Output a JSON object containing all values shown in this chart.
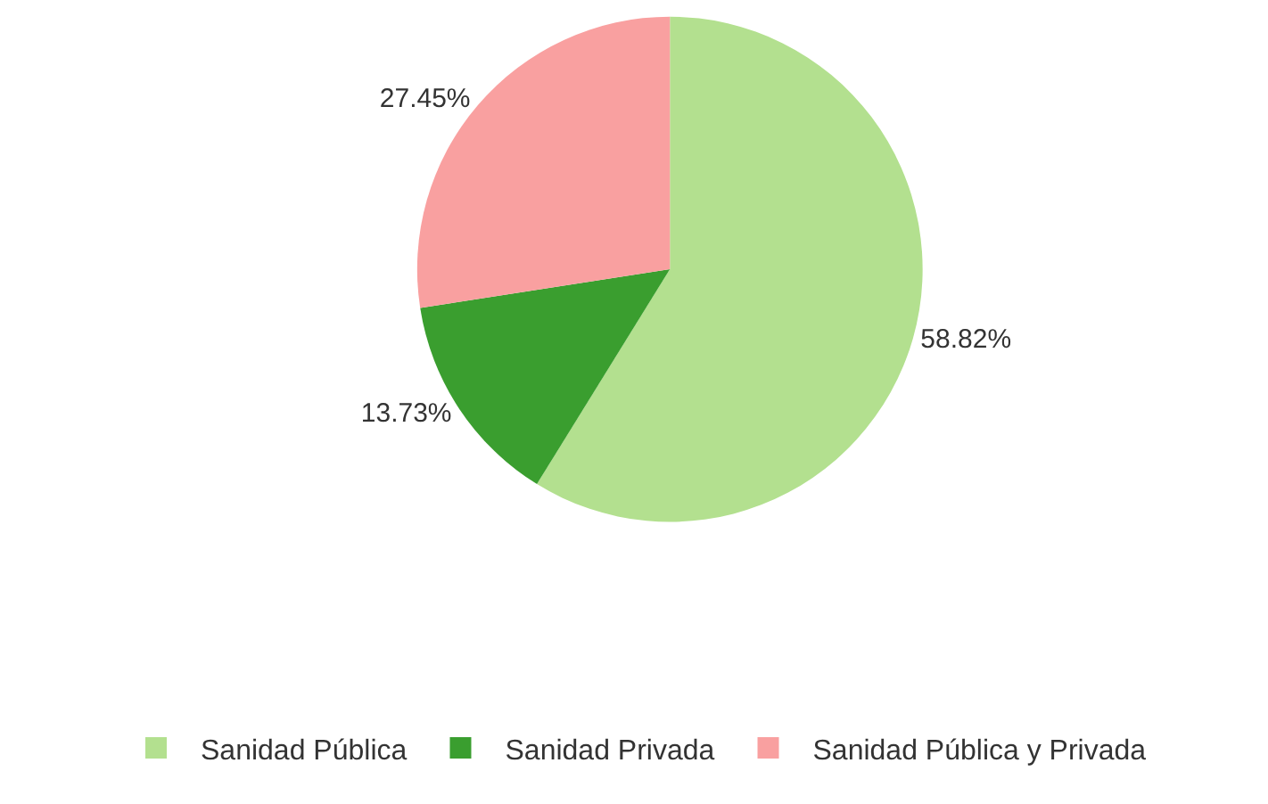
{
  "chart_data": {
    "type": "pie",
    "categories": [
      "Sanidad Pública",
      "Sanidad Privada",
      "Sanidad Pública y Privada"
    ],
    "values": [
      58.82,
      13.73,
      27.45
    ],
    "colors": [
      "#b3e08f",
      "#3a9e2f",
      "#f9a0a0"
    ],
    "value_labels": [
      "58.82%",
      "13.73%",
      "27.45%"
    ],
    "legend": "bottom"
  }
}
